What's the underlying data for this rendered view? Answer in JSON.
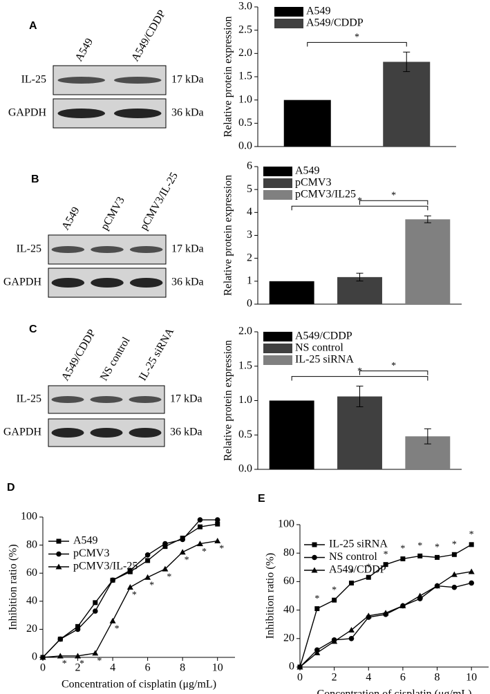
{
  "blots": [
    {
      "panel": "A",
      "lanes": [
        "A549",
        "A549/CDDP"
      ],
      "rows": [
        {
          "name": "IL-25",
          "size": "17 kDa"
        },
        {
          "name": "GAPDH",
          "size": "36 kDa"
        }
      ]
    },
    {
      "panel": "B",
      "lanes": [
        "A549",
        "pCMV3",
        "pCMV3/IL-25"
      ],
      "rows": [
        {
          "name": "IL-25",
          "size": "17 kDa"
        },
        {
          "name": "GAPDH",
          "size": "36 kDa"
        }
      ]
    },
    {
      "panel": "C",
      "lanes": [
        "A549/CDDP",
        "NS control",
        "IL-25 siRNA"
      ],
      "rows": [
        {
          "name": "IL-25",
          "size": "17 kDa"
        },
        {
          "name": "GAPDH",
          "size": "36 kDa"
        }
      ]
    }
  ],
  "chart_data": [
    {
      "type": "bar",
      "ylabel": "Relative protein expression",
      "ylim": [
        0,
        3
      ],
      "yticks": [
        {
          "value": 0,
          "label": "0.0"
        },
        0.5,
        {
          "value": 1,
          "label": "1.0"
        },
        1.5,
        {
          "value": 2,
          "label": "2.0"
        },
        2.5,
        {
          "value": 3,
          "label": "3.0"
        }
      ],
      "series": [
        {
          "name": "A549",
          "color": "#000000",
          "values": [
            1.0
          ],
          "errors": [
            null
          ]
        },
        {
          "name": "A549/CDDP",
          "color": "#404040",
          "values": [
            1.82
          ],
          "errors": [
            0.21
          ]
        }
      ],
      "significance": [
        {
          "label": "*",
          "from": 0,
          "to": 1
        }
      ]
    },
    {
      "type": "bar",
      "ylabel": "Relative protein expression",
      "ylim": [
        0,
        6
      ],
      "yticks": [
        0,
        1,
        2,
        3,
        4,
        5,
        6
      ],
      "series": [
        {
          "name": "A549",
          "color": "#000000",
          "values": [
            1.0
          ],
          "errors": [
            null
          ]
        },
        {
          "name": "pCMV3",
          "color": "#404040",
          "values": [
            1.18
          ],
          "errors": [
            0.17
          ]
        },
        {
          "name": "pCMV3/IL25",
          "color": "#808080",
          "values": [
            3.7
          ],
          "errors": [
            0.15
          ]
        }
      ],
      "significance": [
        {
          "label": "*",
          "from": 0,
          "to": 2
        },
        {
          "label": "*",
          "from": 1,
          "to": 2
        }
      ]
    },
    {
      "type": "bar",
      "ylabel": "Relative protein expression",
      "ylim": [
        0,
        2
      ],
      "yticks": [
        {
          "value": 0,
          "label": "0.0"
        },
        0.5,
        {
          "value": 1,
          "label": "1.0"
        },
        1.5,
        {
          "value": 2,
          "label": "2.0"
        }
      ],
      "series": [
        {
          "name": "A549/CDDP",
          "color": "#000000",
          "values": [
            1.0
          ],
          "errors": [
            null
          ]
        },
        {
          "name": "NS control",
          "color": "#404040",
          "values": [
            1.06
          ],
          "errors": [
            0.15
          ]
        },
        {
          "name": "IL-25 siRNA",
          "color": "#808080",
          "values": [
            0.48
          ],
          "errors": [
            0.11
          ]
        }
      ],
      "significance": [
        {
          "label": "*",
          "from": 0,
          "to": 2
        },
        {
          "label": "*",
          "from": 1,
          "to": 2
        }
      ]
    },
    {
      "type": "line",
      "panel": "D",
      "xlabel": "Concentration of cisplatin (μg/mL)",
      "ylabel": "Inhibition ratio (%)",
      "xlim": [
        0,
        11
      ],
      "xticks": [
        0,
        2,
        4,
        6,
        8,
        10
      ],
      "ylim": [
        0,
        100
      ],
      "yticks": [
        0,
        20,
        40,
        60,
        80,
        100
      ],
      "x": [
        0,
        1,
        2,
        3,
        4,
        5,
        6,
        7,
        8,
        9,
        10
      ],
      "series": [
        {
          "name": "A549",
          "color": "#000000",
          "marker": "square",
          "values": [
            0,
            13,
            22,
            39,
            55,
            61,
            69,
            79,
            85,
            93,
            95
          ]
        },
        {
          "name": "pCMV3",
          "color": "#000000",
          "marker": "circle",
          "values": [
            0,
            13,
            20,
            33,
            55,
            62,
            73,
            81,
            84,
            98,
            98
          ]
        },
        {
          "name": "pCMV3/IL-25",
          "color": "#000000",
          "marker": "triangle",
          "values": [
            0,
            1,
            1,
            3,
            26,
            50,
            57,
            63,
            75,
            81,
            83
          ]
        }
      ],
      "significance": {
        "label": "*",
        "series": 2,
        "x": [
          1,
          2,
          3,
          4,
          5,
          6,
          7,
          8,
          9,
          10
        ]
      }
    },
    {
      "type": "line",
      "panel": "E",
      "xlabel": "Concentration of cisplatin (μg/mL)",
      "ylabel": "Inhibition ratio (%)",
      "xlim": [
        0,
        11
      ],
      "xticks": [
        0,
        2,
        4,
        6,
        8,
        10
      ],
      "ylim": [
        0,
        100
      ],
      "yticks": [
        0,
        20,
        40,
        60,
        80,
        100
      ],
      "x": [
        0,
        1,
        2,
        3,
        4,
        5,
        6,
        7,
        8,
        9,
        10
      ],
      "series": [
        {
          "name": "IL-25 siRNA",
          "color": "#000000",
          "marker": "square",
          "values": [
            0,
            41,
            47,
            59,
            63,
            72,
            76,
            78,
            77,
            79,
            86
          ]
        },
        {
          "name": "NS control",
          "color": "#000000",
          "marker": "circle",
          "values": [
            0,
            12,
            19,
            20,
            35,
            37,
            43,
            48,
            57,
            56,
            59
          ]
        },
        {
          "name": "A549/CDDP",
          "color": "#000000",
          "marker": "triangle",
          "values": [
            0,
            10,
            18,
            26,
            36,
            38,
            43,
            50,
            57,
            65,
            67
          ]
        }
      ],
      "significance": {
        "label": "*",
        "series": 0,
        "x": [
          1,
          2,
          3,
          4,
          5,
          6,
          7,
          8,
          9,
          10
        ]
      }
    }
  ]
}
